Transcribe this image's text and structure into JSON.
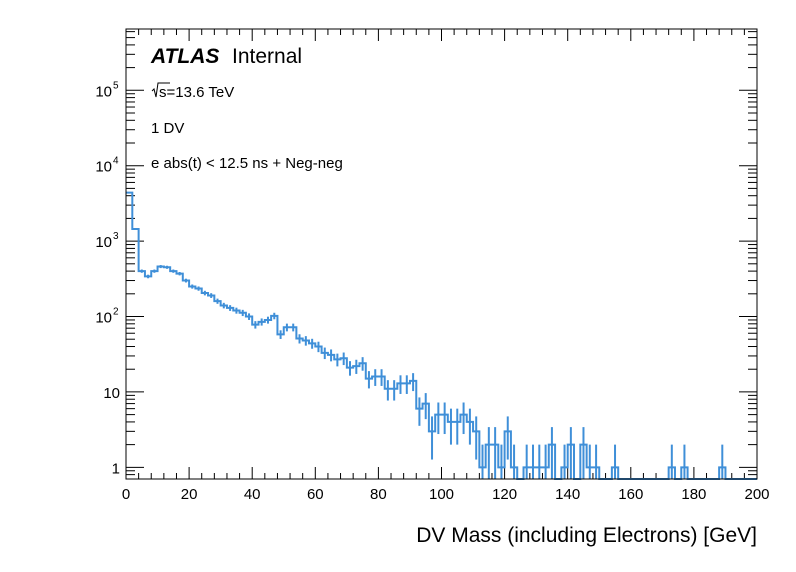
{
  "chart_data": {
    "type": "bar",
    "histogram": true,
    "title": "",
    "xlabel": "DV Mass (including Electrons) [GeV]",
    "ylabel": "",
    "xlim": [
      0,
      200
    ],
    "ylim": [
      0.7,
      650000
    ],
    "yscale": "log",
    "bin_width": 2,
    "x_ticks": [
      "0",
      "20",
      "40",
      "60",
      "80",
      "100",
      "120",
      "140",
      "160",
      "180",
      "200"
    ],
    "y_ticks": [
      {
        "value": 1,
        "base": "1",
        "exp": ""
      },
      {
        "value": 10,
        "base": "10",
        "exp": ""
      },
      {
        "value": 100,
        "base": "10",
        "exp": "2"
      },
      {
        "value": 1000,
        "base": "10",
        "exp": "3"
      },
      {
        "value": 10000,
        "base": "10",
        "exp": "4"
      },
      {
        "value": 100000,
        "base": "10",
        "exp": "5"
      }
    ],
    "annotations": {
      "experiment": "ATLAS",
      "status": "Internal",
      "energy_prefix": "s=13.6 TeV",
      "line2": "1 DV",
      "line3": "e abs(t) < 12.5 ns + Neg-neg"
    },
    "series": [
      {
        "name": "DV mass",
        "color": "#3f8fd8",
        "values": [
          4400,
          1450,
          400,
          340,
          400,
          460,
          450,
          400,
          370,
          300,
          250,
          235,
          205,
          190,
          160,
          140,
          130,
          120,
          112,
          100,
          78,
          85,
          90,
          102,
          58,
          72,
          72,
          51,
          48,
          44,
          40,
          33,
          31,
          27,
          28,
          21,
          22,
          24,
          15,
          16,
          16,
          11,
          11,
          13,
          13,
          14,
          6,
          7,
          3,
          5,
          5,
          4,
          4,
          5,
          4,
          3,
          1,
          2,
          2,
          1,
          3,
          1,
          0,
          1,
          1,
          1,
          1,
          2,
          0,
          1,
          2,
          0,
          2,
          1,
          1,
          0,
          0,
          1,
          0,
          0,
          0,
          0,
          0,
          0,
          0,
          0,
          1,
          0,
          1,
          0,
          0,
          0,
          0,
          0,
          1,
          0,
          0,
          0,
          0,
          0
        ]
      }
    ]
  }
}
